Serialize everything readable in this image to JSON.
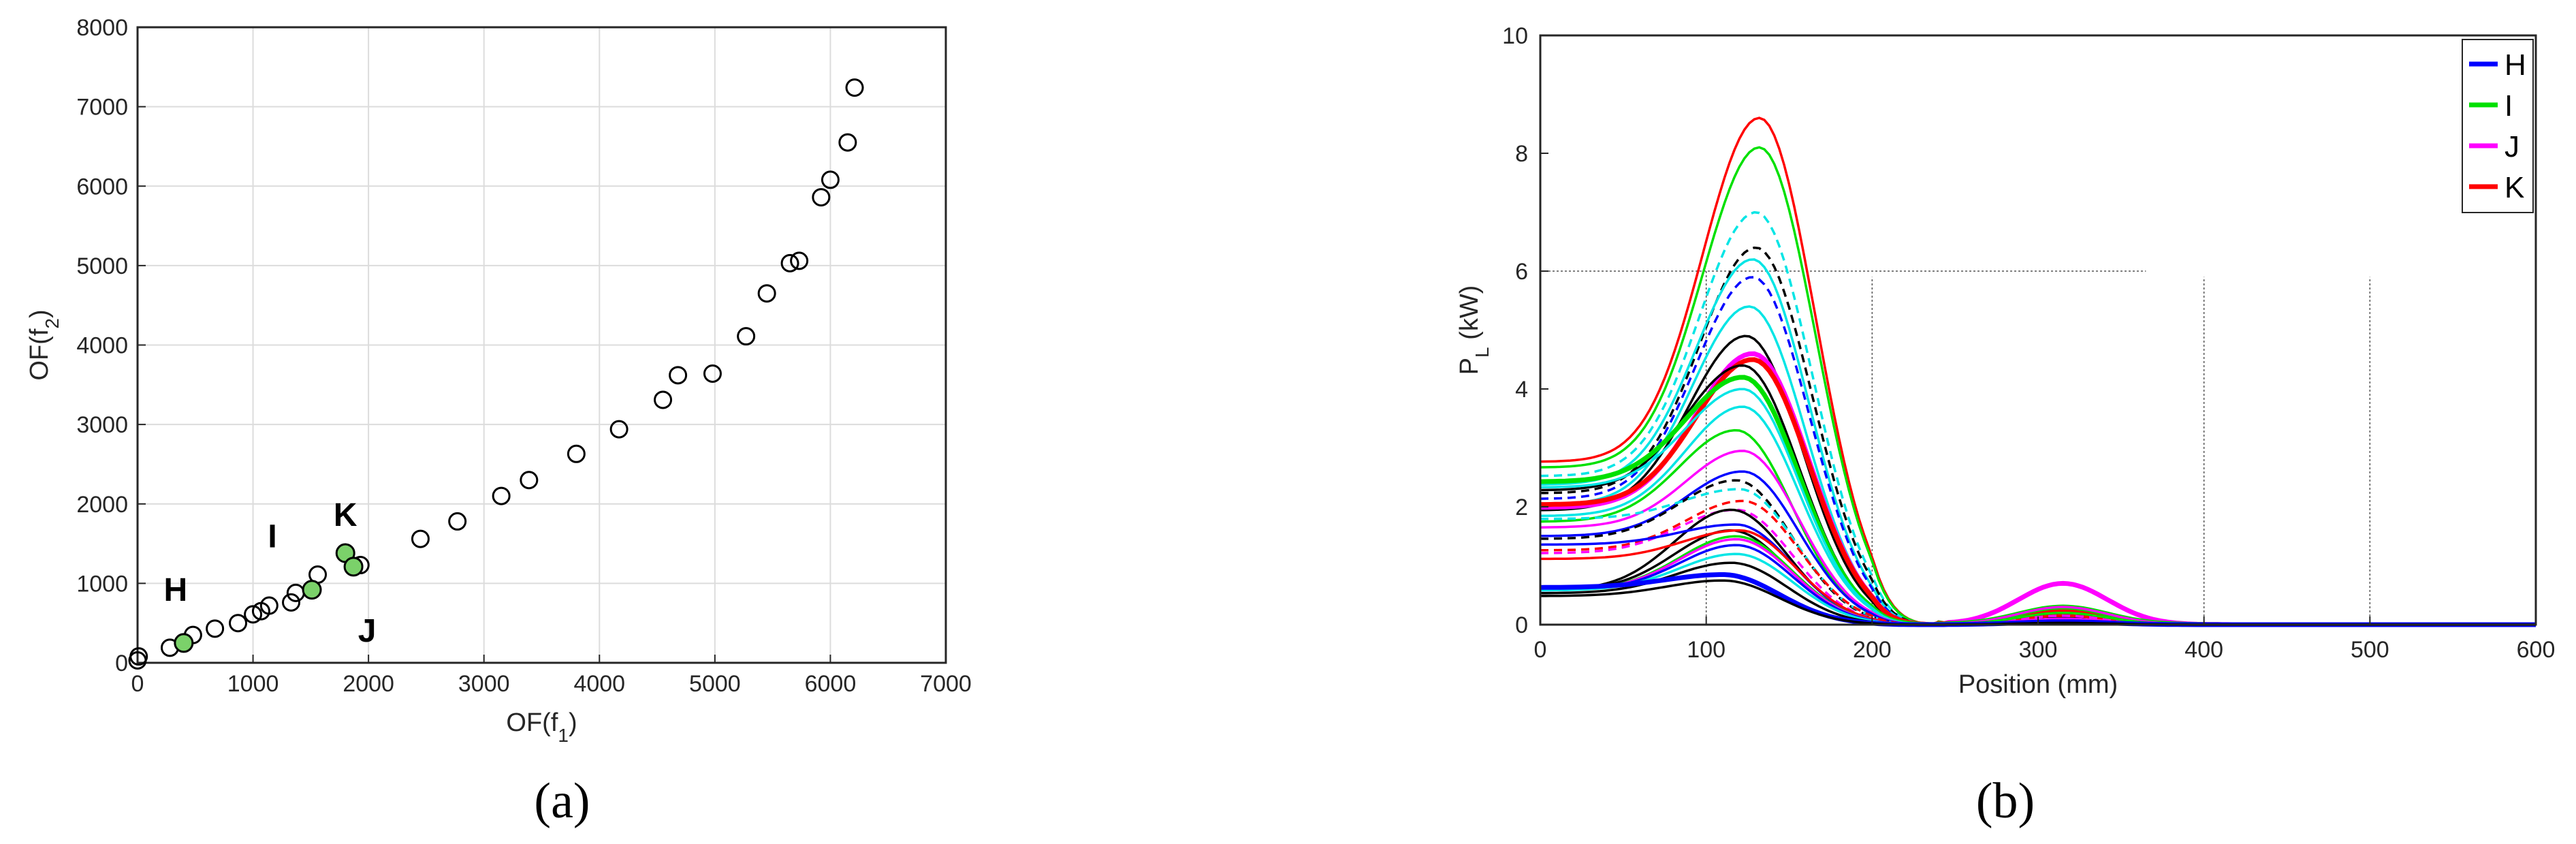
{
  "chart_data": [
    {
      "type": "scatter",
      "panel_caption": "(a)",
      "xlabel": "OF(f1)",
      "ylabel": "OF(f2)",
      "xlim": [
        0,
        7000
      ],
      "ylim": [
        0,
        8000
      ],
      "xticks": [
        0,
        1000,
        2000,
        3000,
        4000,
        5000,
        6000,
        7000
      ],
      "yticks": [
        0,
        1000,
        2000,
        3000,
        4000,
        5000,
        6000,
        7000,
        8000
      ],
      "grid": true,
      "points": [
        [
          0,
          30
        ],
        [
          10,
          80
        ],
        [
          280,
          190
        ],
        [
          400,
          250
        ],
        [
          480,
          350
        ],
        [
          670,
          430
        ],
        [
          870,
          500
        ],
        [
          1000,
          610
        ],
        [
          1070,
          650
        ],
        [
          1140,
          720
        ],
        [
          1330,
          760
        ],
        [
          1370,
          880
        ],
        [
          1510,
          920
        ],
        [
          1560,
          1110
        ],
        [
          1800,
          1380
        ],
        [
          1870,
          1210
        ],
        [
          1930,
          1230
        ],
        [
          2450,
          1560
        ],
        [
          2770,
          1780
        ],
        [
          3150,
          2100
        ],
        [
          3390,
          2300
        ],
        [
          3800,
          2630
        ],
        [
          4170,
          2940
        ],
        [
          4550,
          3310
        ],
        [
          4680,
          3620
        ],
        [
          4980,
          3640
        ],
        [
          5270,
          4110
        ],
        [
          5450,
          4650
        ],
        [
          5650,
          5030
        ],
        [
          5730,
          5060
        ],
        [
          5920,
          5860
        ],
        [
          6000,
          6080
        ],
        [
          6150,
          6550
        ],
        [
          6210,
          7240
        ]
      ],
      "highlighted": [
        {
          "label": "H",
          "x": 400,
          "y": 250
        },
        {
          "label": "I",
          "x": 1510,
          "y": 920
        },
        {
          "label": "K",
          "x": 1800,
          "y": 1380
        },
        {
          "label": "J",
          "x": 1870,
          "y": 1210
        }
      ],
      "marker_color": "#000000",
      "highlight_color": "#7bd16a"
    },
    {
      "type": "line",
      "panel_caption": "(b)",
      "xlabel": "Position (mm)",
      "ylabel_main": "P",
      "ylabel_sub": "L",
      "ylabel_unit": " (kW)",
      "xlim": [
        0,
        600
      ],
      "ylim": [
        0,
        10
      ],
      "xticks": [
        0,
        100,
        200,
        300,
        400,
        500,
        600
      ],
      "yticks": [
        0,
        2,
        4,
        6,
        8,
        10
      ],
      "grid": "partial",
      "legend_position": "top-right",
      "legend": [
        {
          "name": "H",
          "color": "#0000ff"
        },
        {
          "name": "I",
          "color": "#00e000"
        },
        {
          "name": "J",
          "color": "#ff00ff"
        },
        {
          "name": "K",
          "color": "#ff0000"
        }
      ],
      "curve_model": "peak1 * gaussian(x; c1, width) + start value at x=0 + peak2 * gaussian(x; 315, 35)",
      "series": [
        {
          "color": "#ff0000",
          "dash": false,
          "peak": 8.6,
          "start": 2.85,
          "center": 132,
          "second_peak": 0.18
        },
        {
          "color": "#00e000",
          "dash": false,
          "peak": 8.1,
          "start": 2.75,
          "center": 132,
          "second_peak": 0.28
        },
        {
          "color": "#00e5e5",
          "dash": true,
          "peak": 7.0,
          "start": 2.6,
          "center": 130,
          "second_peak": 0.15
        },
        {
          "color": "#000000",
          "dash": true,
          "peak": 6.4,
          "start": 2.3,
          "center": 130,
          "second_peak": 0.15
        },
        {
          "color": "#00e5e5",
          "dash": false,
          "peak": 6.2,
          "start": 2.45,
          "center": 128,
          "second_peak": 0.12
        },
        {
          "color": "#0000ff",
          "dash": true,
          "peak": 5.9,
          "start": 2.2,
          "center": 128,
          "second_peak": 0.1
        },
        {
          "color": "#00e5e5",
          "dash": false,
          "peak": 5.4,
          "start": 2.1,
          "center": 126,
          "second_peak": 0.1
        },
        {
          "color": "#000000",
          "dash": false,
          "peak": 4.9,
          "start": 2.0,
          "center": 124,
          "second_peak": 0.12
        },
        {
          "color": "#ff00ff",
          "dash": false,
          "peak": 4.6,
          "start": 2.05,
          "center": 128,
          "second_peak": 0.7,
          "bold": true
        },
        {
          "color": "#ff0000",
          "dash": false,
          "peak": 4.5,
          "start": 2.1,
          "center": 128,
          "second_peak": 0.25,
          "bold": true
        },
        {
          "color": "#000000",
          "dash": false,
          "peak": 4.4,
          "start": 2.35,
          "center": 122,
          "second_peak": 0.1
        },
        {
          "color": "#00e000",
          "dash": false,
          "peak": 4.2,
          "start": 2.5,
          "center": 122,
          "second_peak": 0.3,
          "bold": true
        },
        {
          "color": "#00e5e5",
          "dash": false,
          "peak": 4.0,
          "start": 2.4,
          "center": 122,
          "second_peak": 0.1
        },
        {
          "color": "#00e5e5",
          "dash": false,
          "peak": 3.7,
          "start": 1.9,
          "center": 122,
          "second_peak": 0.1
        },
        {
          "color": "#00e000",
          "dash": false,
          "peak": 3.3,
          "start": 1.8,
          "center": 118,
          "second_peak": 0.2
        },
        {
          "color": "#ff00ff",
          "dash": false,
          "peak": 2.95,
          "start": 1.7,
          "center": 122,
          "second_peak": 0.3
        },
        {
          "color": "#0000ff",
          "dash": false,
          "peak": 2.6,
          "start": 1.55,
          "center": 122,
          "second_peak": 0.08
        },
        {
          "color": "#000000",
          "dash": true,
          "peak": 2.45,
          "start": 1.5,
          "center": 118,
          "second_peak": 0.1
        },
        {
          "color": "#00e5e5",
          "dash": true,
          "peak": 2.3,
          "start": 1.85,
          "center": 120,
          "second_peak": 0.1
        },
        {
          "color": "#ff0000",
          "dash": true,
          "peak": 2.1,
          "start": 1.3,
          "center": 122,
          "second_peak": 0.15
        },
        {
          "color": "#ff00ff",
          "dash": true,
          "peak": 1.95,
          "start": 1.25,
          "center": 118,
          "second_peak": 0.15
        },
        {
          "color": "#000000",
          "dash": false,
          "peak": 1.95,
          "start": 0.6,
          "center": 115,
          "second_peak": 0.05
        },
        {
          "color": "#0000ff",
          "dash": false,
          "peak": 1.7,
          "start": 1.4,
          "center": 118,
          "second_peak": 0.08
        },
        {
          "color": "#000000",
          "dash": false,
          "peak": 1.6,
          "start": 0.6,
          "center": 115,
          "second_peak": 0.05
        },
        {
          "color": "#ff0000",
          "dash": false,
          "peak": 1.6,
          "start": 1.15,
          "center": 120,
          "second_peak": 0.2
        },
        {
          "color": "#00e000",
          "dash": false,
          "peak": 1.5,
          "start": 0.6,
          "center": 118,
          "second_peak": 0.2
        },
        {
          "color": "#ff00ff",
          "dash": false,
          "peak": 1.45,
          "start": 0.6,
          "center": 118,
          "second_peak": 0.1
        },
        {
          "color": "#0000ff",
          "dash": false,
          "peak": 1.35,
          "start": 0.6,
          "center": 118,
          "second_peak": 0.05
        },
        {
          "color": "#00e5e5",
          "dash": false,
          "peak": 1.2,
          "start": 0.6,
          "center": 118,
          "second_peak": 0.05
        },
        {
          "color": "#000000",
          "dash": false,
          "peak": 1.05,
          "start": 0.55,
          "center": 115,
          "second_peak": 0.05
        },
        {
          "color": "#0000ff",
          "dash": false,
          "peak": 0.85,
          "start": 0.65,
          "center": 110,
          "second_peak": 0.05,
          "bold": true
        },
        {
          "color": "#000000",
          "dash": false,
          "peak": 0.75,
          "start": 0.5,
          "center": 110,
          "second_peak": 0.03
        }
      ]
    }
  ]
}
